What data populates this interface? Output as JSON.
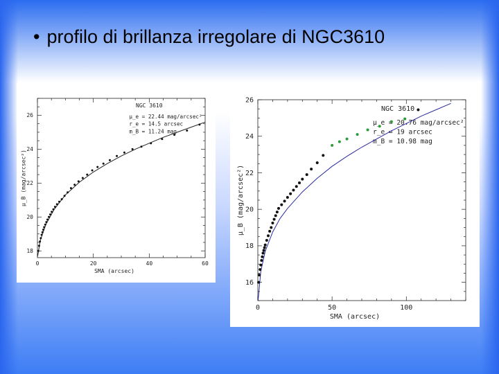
{
  "slide": {
    "bullet": "•",
    "title": "profilo di brillanza irregolare di NGC3610"
  },
  "chart_data": [
    {
      "type": "scatter",
      "title": "NGC 3610",
      "xlabel": "SMA (arcsec)",
      "ylabel": "μ_B (mag/arcsec²)",
      "xlim": [
        0,
        60
      ],
      "ylim": [
        27,
        17.6
      ],
      "xticks": [
        "0",
        "20",
        "40",
        "60"
      ],
      "yticks": [
        "18",
        "20",
        "22",
        "24",
        "26"
      ],
      "annotations": [
        "μ_e = 22.44 mag/arcsec²",
        "r_e = 14.5 arcsec",
        "m_B = 11.24 mag"
      ],
      "points": [
        [
          0.3,
          18.0
        ],
        [
          0.6,
          18.3
        ],
        [
          0.9,
          18.55
        ],
        [
          1.2,
          18.75
        ],
        [
          1.5,
          18.95
        ],
        [
          1.8,
          19.1
        ],
        [
          2.1,
          19.25
        ],
        [
          2.4,
          19.4
        ],
        [
          2.8,
          19.55
        ],
        [
          3.2,
          19.7
        ],
        [
          3.6,
          19.85
        ],
        [
          4.1,
          20.0
        ],
        [
          4.6,
          20.15
        ],
        [
          5.1,
          20.3
        ],
        [
          5.7,
          20.45
        ],
        [
          6.3,
          20.6
        ],
        [
          7.0,
          20.75
        ],
        [
          7.8,
          20.9
        ],
        [
          8.7,
          21.05
        ],
        [
          9.7,
          21.25
        ],
        [
          10.8,
          21.45
        ],
        [
          12.0,
          21.7
        ],
        [
          13.3,
          21.9
        ],
        [
          14.7,
          22.1
        ],
        [
          16.2,
          22.3
        ],
        [
          17.8,
          22.5
        ],
        [
          19.6,
          22.75
        ],
        [
          21.5,
          22.95
        ],
        [
          23.6,
          23.15
        ],
        [
          25.9,
          23.35
        ],
        [
          28.4,
          23.6
        ],
        [
          31.1,
          23.8
        ],
        [
          34.0,
          24.0
        ],
        [
          37.2,
          24.15
        ],
        [
          40.6,
          24.35
        ],
        [
          44.6,
          24.6
        ],
        [
          49.0,
          24.85
        ],
        [
          53.5,
          25.1
        ],
        [
          58.0,
          25.45
        ]
      ],
      "fit": [
        [
          0.1,
          17.7
        ],
        [
          1,
          18.6
        ],
        [
          3,
          19.55
        ],
        [
          6,
          20.45
        ],
        [
          10,
          21.3
        ],
        [
          15,
          22.05
        ],
        [
          20,
          22.65
        ],
        [
          25,
          23.15
        ],
        [
          30,
          23.6
        ],
        [
          35,
          24.0
        ],
        [
          40,
          24.35
        ],
        [
          45,
          24.7
        ],
        [
          50,
          25.0
        ],
        [
          55,
          25.3
        ],
        [
          60,
          25.6
        ]
      ]
    },
    {
      "type": "scatter",
      "title": "NGC 3610",
      "xlabel": "SMA (arcsec)",
      "ylabel": "μ_B (mag/arcsec²)",
      "xlim": [
        0,
        140
      ],
      "ylim": [
        26,
        15
      ],
      "xticks": [
        "0",
        "50",
        "100"
      ],
      "yticks": [
        "16",
        "18",
        "20",
        "22",
        "24",
        "26"
      ],
      "annotations": [
        "μ_e = 20.76 mag/arcsec²",
        "r_e = 19 arcsec",
        "m_B = 10.98 mag"
      ],
      "points": [
        [
          0.5,
          16.0
        ],
        [
          1,
          16.4
        ],
        [
          1.5,
          16.7
        ],
        [
          2,
          16.95
        ],
        [
          2.5,
          17.2
        ],
        [
          3,
          17.4
        ],
        [
          3.5,
          17.6
        ],
        [
          4,
          17.75
        ],
        [
          4.5,
          17.9
        ],
        [
          5,
          18.05
        ],
        [
          6,
          18.3
        ],
        [
          7,
          18.55
        ],
        [
          8,
          18.8
        ],
        [
          9,
          19.0
        ],
        [
          10,
          19.25
        ],
        [
          11,
          19.45
        ],
        [
          12,
          19.65
        ],
        [
          13,
          19.85
        ],
        [
          14,
          20.05
        ],
        [
          16,
          20.25
        ],
        [
          18,
          20.45
        ],
        [
          20,
          20.65
        ],
        [
          22,
          20.85
        ],
        [
          24,
          21.05
        ],
        [
          26,
          21.25
        ],
        [
          28,
          21.45
        ],
        [
          30,
          21.65
        ],
        [
          33,
          21.9
        ],
        [
          36,
          22.2
        ],
        [
          40,
          22.55
        ],
        [
          44,
          22.95
        ]
      ],
      "points_green": [
        [
          50,
          23.5
        ],
        [
          55,
          23.7
        ],
        [
          60,
          23.85
        ],
        [
          67,
          24.1
        ],
        [
          74,
          24.35
        ],
        [
          82,
          24.55
        ],
        [
          90,
          24.8
        ],
        [
          99,
          24.95
        ]
      ],
      "points_end": [
        [
          108,
          25.45
        ]
      ],
      "fit": [
        [
          0.2,
          15.0
        ],
        [
          2,
          16.6
        ],
        [
          5,
          17.7
        ],
        [
          10,
          18.75
        ],
        [
          15,
          19.5
        ],
        [
          20,
          20.05
        ],
        [
          30,
          20.95
        ],
        [
          40,
          21.7
        ],
        [
          50,
          22.35
        ],
        [
          60,
          22.9
        ],
        [
          70,
          23.4
        ],
        [
          80,
          23.85
        ],
        [
          90,
          24.3
        ],
        [
          100,
          24.7
        ],
        [
          110,
          25.1
        ],
        [
          120,
          25.45
        ],
        [
          130,
          25.8
        ]
      ]
    }
  ]
}
